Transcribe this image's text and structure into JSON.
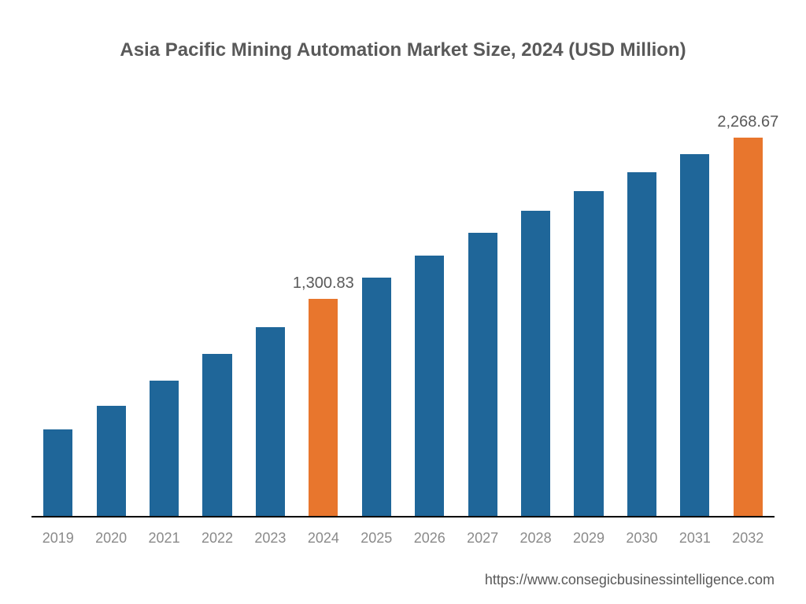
{
  "chart": {
    "type": "bar",
    "title": "Asia Pacific Mining Automation Market Size, 2024 (USD Million)",
    "title_fontsize": 24,
    "title_color": "#595959",
    "source_url": "https://www.consegicbusinessintelligence.com",
    "source_fontsize": 18,
    "background_color": "#ffffff",
    "axis_line_color": "#000000",
    "xlabel_color": "#8a8a8a",
    "xlabel_fontsize": 18,
    "value_label_color": "#595959",
    "value_label_fontsize": 20,
    "y_max": 2500,
    "bar_width_ratio": 0.55,
    "default_bar_color": "#1f6699",
    "highlight_bar_color": "#e8762d",
    "bars": [
      {
        "category": "2019",
        "value": 520,
        "highlight": false,
        "show_label": false,
        "label": ""
      },
      {
        "category": "2020",
        "value": 660,
        "highlight": false,
        "show_label": false,
        "label": ""
      },
      {
        "category": "2021",
        "value": 810,
        "highlight": false,
        "show_label": false,
        "label": ""
      },
      {
        "category": "2022",
        "value": 970,
        "highlight": false,
        "show_label": false,
        "label": ""
      },
      {
        "category": "2023",
        "value": 1130,
        "highlight": false,
        "show_label": false,
        "label": ""
      },
      {
        "category": "2024",
        "value": 1300.83,
        "highlight": true,
        "show_label": true,
        "label": "1,300.83"
      },
      {
        "category": "2025",
        "value": 1430,
        "highlight": false,
        "show_label": false,
        "label": ""
      },
      {
        "category": "2026",
        "value": 1560,
        "highlight": false,
        "show_label": false,
        "label": ""
      },
      {
        "category": "2027",
        "value": 1700,
        "highlight": false,
        "show_label": false,
        "label": ""
      },
      {
        "category": "2028",
        "value": 1830,
        "highlight": false,
        "show_label": false,
        "label": ""
      },
      {
        "category": "2029",
        "value": 1950,
        "highlight": false,
        "show_label": false,
        "label": ""
      },
      {
        "category": "2030",
        "value": 2060,
        "highlight": false,
        "show_label": false,
        "label": ""
      },
      {
        "category": "2031",
        "value": 2170,
        "highlight": false,
        "show_label": false,
        "label": ""
      },
      {
        "category": "2032",
        "value": 2268.67,
        "highlight": true,
        "show_label": true,
        "label": "2,268.67"
      }
    ]
  }
}
